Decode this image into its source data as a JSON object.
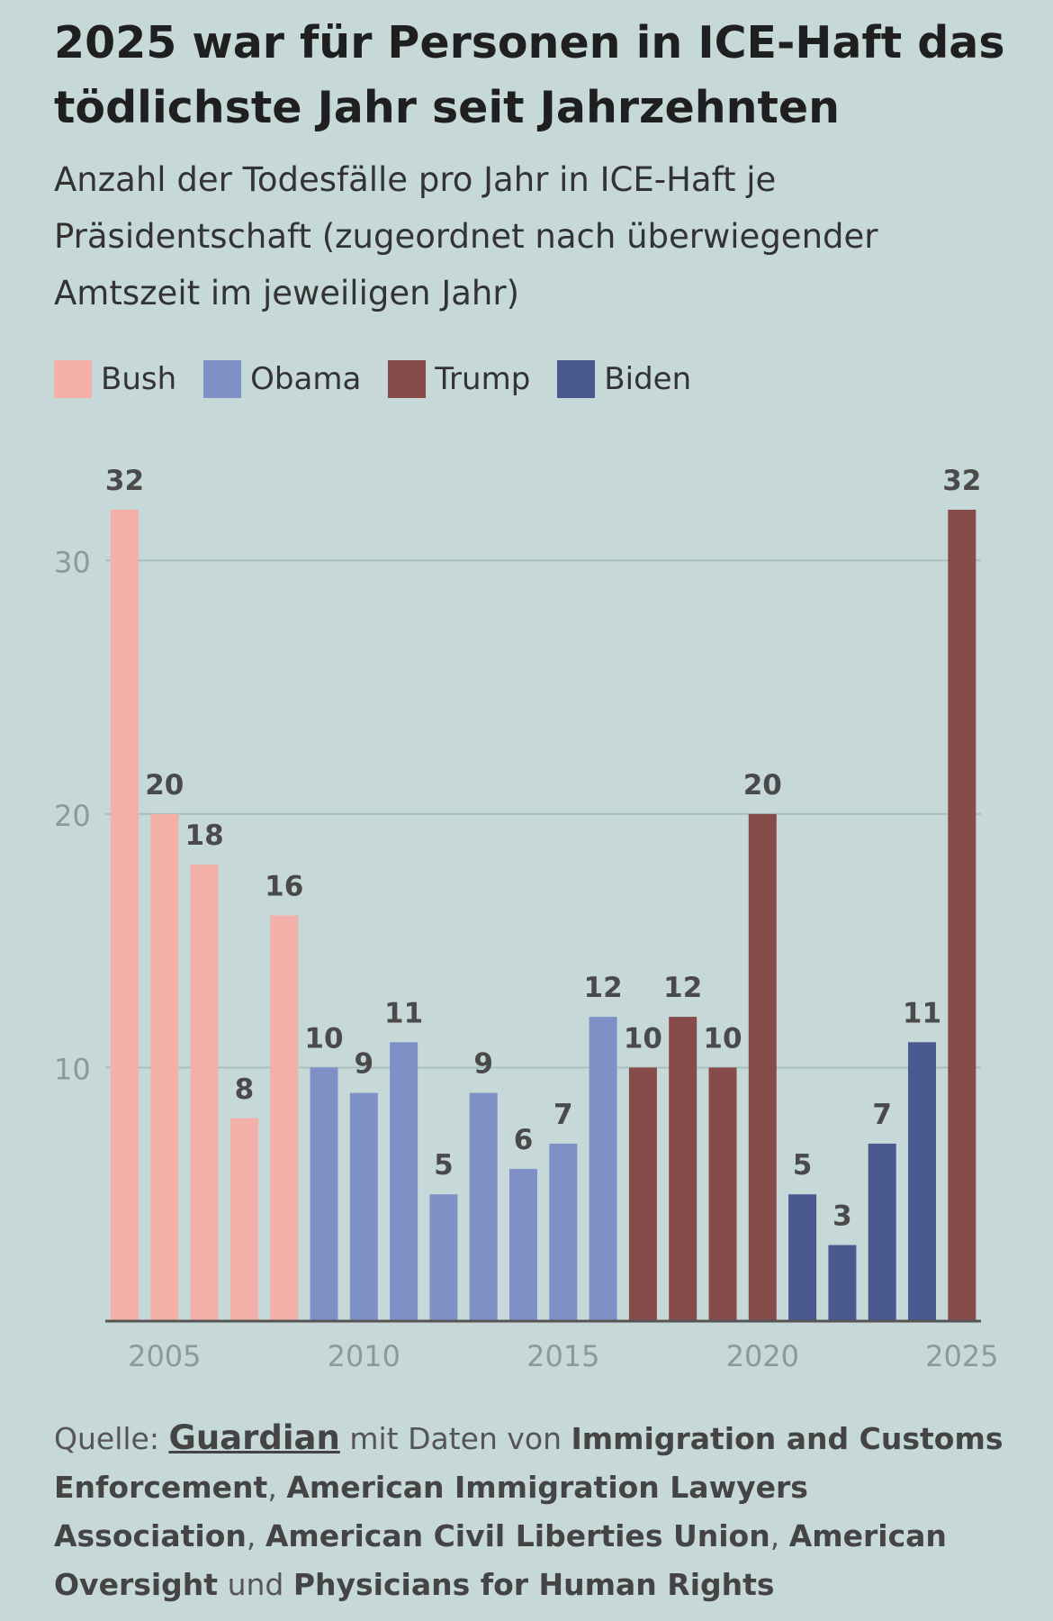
{
  "title": "2025 war für Personen in ICE-Haft das tödlichste Jahr seit Jahrzehnten",
  "subtitle": "Anzahl der Todesfälle pro Jahr in ICE-Haft je Präsidentschaft (zugeordnet nach überwiegender Amtszeit im jeweiligen Jahr)",
  "legend": [
    {
      "label": "Bush",
      "color": "#f2b0a8"
    },
    {
      "label": "Obama",
      "color": "#7f90c6"
    },
    {
      "label": "Trump",
      "color": "#874b4a"
    },
    {
      "label": "Biden",
      "color": "#4a5990"
    }
  ],
  "chart_data": {
    "type": "bar",
    "x": [
      2004,
      2005,
      2006,
      2007,
      2008,
      2009,
      2010,
      2011,
      2012,
      2013,
      2014,
      2015,
      2016,
      2017,
      2018,
      2019,
      2020,
      2021,
      2022,
      2023,
      2024,
      2025
    ],
    "values": [
      32,
      20,
      18,
      8,
      16,
      10,
      9,
      11,
      5,
      9,
      6,
      7,
      12,
      10,
      12,
      10,
      20,
      5,
      3,
      7,
      11,
      32
    ],
    "presidency": [
      "Bush",
      "Bush",
      "Bush",
      "Bush",
      "Bush",
      "Obama",
      "Obama",
      "Obama",
      "Obama",
      "Obama",
      "Obama",
      "Obama",
      "Obama",
      "Trump",
      "Trump",
      "Trump",
      "Trump",
      "Biden",
      "Biden",
      "Biden",
      "Biden",
      "Trump"
    ],
    "colors": {
      "Bush": "#f2b0a8",
      "Obama": "#7f90c6",
      "Trump": "#874b4a",
      "Biden": "#4a5990"
    },
    "yticks": [
      10,
      20,
      30
    ],
    "xticks": [
      2005,
      2010,
      2015,
      2020,
      2025
    ],
    "ylim": [
      0,
      32
    ],
    "grid": true
  },
  "source": {
    "prefix": "Quelle: ",
    "link": "Guardian",
    "mid": " mit Daten von ",
    "org1": "Immigration and Customs Enforcement",
    "sep1": ", ",
    "org2": "American Immigration Lawyers Association",
    "sep2": ", ",
    "org3": "American Civil Liberties Union",
    "sep3": ", ",
    "org4": "American Oversight",
    "and": " und ",
    "org5": "Physicians for Human Rights"
  }
}
